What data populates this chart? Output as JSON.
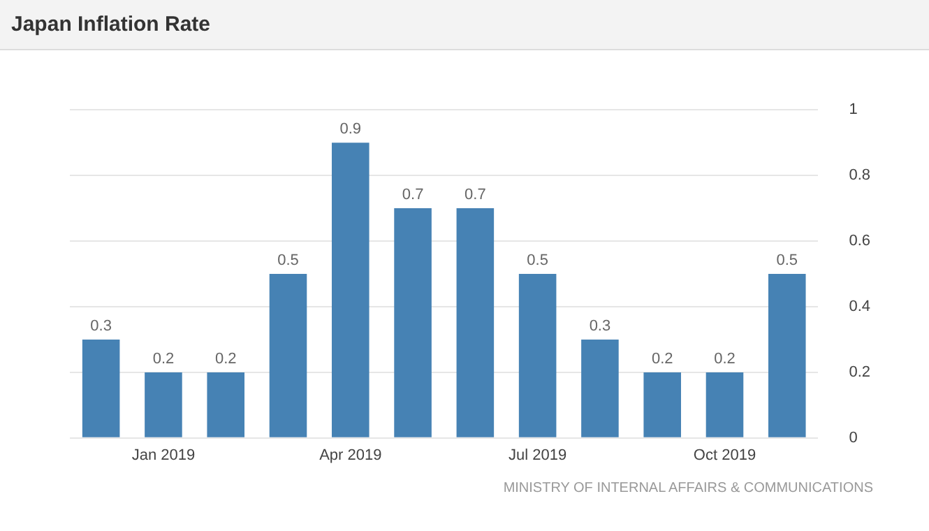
{
  "chart_data": {
    "type": "bar",
    "title": "Japan Inflation Rate",
    "categories": [
      null,
      "Jan 2019",
      null,
      null,
      "Apr 2019",
      null,
      null,
      "Jul 2019",
      null,
      null,
      "Oct 2019",
      null
    ],
    "values": [
      0.3,
      0.2,
      0.2,
      0.5,
      0.9,
      0.7,
      0.7,
      0.5,
      0.3,
      0.2,
      0.2,
      0.5
    ],
    "color": "#4682b4",
    "ylim": [
      0,
      1
    ],
    "yticks": [
      0,
      0.2,
      0.4,
      0.6,
      0.8,
      1
    ],
    "grid": "y",
    "data_labels": true,
    "legend": false,
    "annotations": [
      "MINISTRY OF INTERNAL AFFAIRS & COMMUNICATIONS"
    ]
  }
}
